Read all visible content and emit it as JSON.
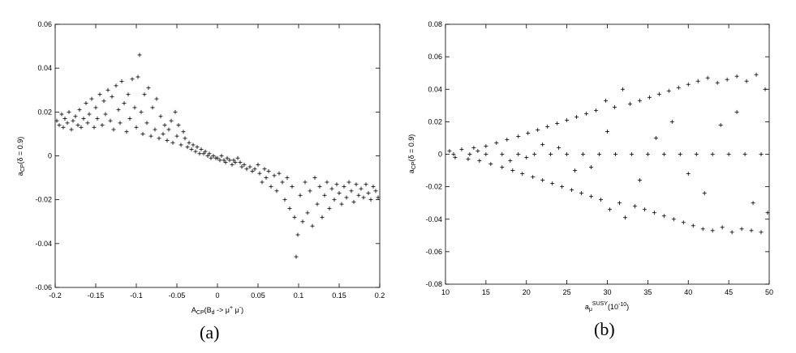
{
  "chart_data": [
    {
      "type": "scatter",
      "panel_label": "(a)",
      "xlabel": {
        "base": "A",
        "sub1": "CP",
        "mid": "(B",
        "sub2": "d",
        "arrow": " -> μ",
        "sup1": "+",
        "mid2": " μ",
        "sup2": "-",
        "end": ")"
      },
      "ylabel": {
        "base": "a",
        "sub": "CP",
        "rest": "(δ = 0.9)"
      },
      "xlim": [
        -0.2,
        0.2
      ],
      "ylim": [
        -0.06,
        0.06
      ],
      "xticks": [
        "-0.2",
        "-0.15",
        "-0.1",
        "-0.05",
        "0",
        "0.05",
        "0.1",
        "0.15",
        "0.2"
      ],
      "yticks": [
        "-0.06",
        "-0.04",
        "-0.02",
        "0",
        "0.02",
        "0.04",
        "0.06"
      ],
      "grid": false,
      "marker": "+",
      "points": [
        [
          -0.198,
          0.016
        ],
        [
          -0.195,
          0.014
        ],
        [
          -0.192,
          0.019
        ],
        [
          -0.19,
          0.013
        ],
        [
          -0.188,
          0.017
        ],
        [
          -0.185,
          0.015
        ],
        [
          -0.183,
          0.02
        ],
        [
          -0.18,
          0.012
        ],
        [
          -0.178,
          0.016
        ],
        [
          -0.175,
          0.018
        ],
        [
          -0.172,
          0.014
        ],
        [
          -0.17,
          0.021
        ],
        [
          -0.168,
          0.013
        ],
        [
          -0.165,
          0.017
        ],
        [
          -0.162,
          0.024
        ],
        [
          -0.16,
          0.015
        ],
        [
          -0.158,
          0.019
        ],
        [
          -0.155,
          0.026
        ],
        [
          -0.152,
          0.013
        ],
        [
          -0.15,
          0.022
        ],
        [
          -0.148,
          0.017
        ],
        [
          -0.145,
          0.028
        ],
        [
          -0.142,
          0.014
        ],
        [
          -0.14,
          0.025
        ],
        [
          -0.138,
          0.019
        ],
        [
          -0.135,
          0.03
        ],
        [
          -0.132,
          0.016
        ],
        [
          -0.13,
          0.027
        ],
        [
          -0.128,
          0.012
        ],
        [
          -0.125,
          0.032
        ],
        [
          -0.122,
          0.021
        ],
        [
          -0.12,
          0.015
        ],
        [
          -0.118,
          0.034
        ],
        [
          -0.115,
          0.024
        ],
        [
          -0.112,
          0.011
        ],
        [
          -0.11,
          0.028
        ],
        [
          -0.108,
          0.017
        ],
        [
          -0.105,
          0.035
        ],
        [
          -0.102,
          0.022
        ],
        [
          -0.1,
          0.013
        ],
        [
          -0.098,
          0.036
        ],
        [
          -0.096,
          0.046
        ],
        [
          -0.094,
          0.02
        ],
        [
          -0.092,
          0.01
        ],
        [
          -0.09,
          0.028
        ],
        [
          -0.087,
          0.015
        ],
        [
          -0.085,
          0.031
        ],
        [
          -0.082,
          0.009
        ],
        [
          -0.08,
          0.022
        ],
        [
          -0.077,
          0.012
        ],
        [
          -0.075,
          0.026
        ],
        [
          -0.072,
          0.008
        ],
        [
          -0.07,
          0.018
        ],
        [
          -0.067,
          0.01
        ],
        [
          -0.065,
          0.014
        ],
        [
          -0.062,
          0.007
        ],
        [
          -0.06,
          0.012
        ],
        [
          -0.057,
          0.016
        ],
        [
          -0.055,
          0.006
        ],
        [
          -0.052,
          0.02
        ],
        [
          -0.05,
          0.009
        ],
        [
          -0.048,
          0.014
        ],
        [
          -0.045,
          0.005
        ],
        [
          -0.042,
          0.011
        ],
        [
          -0.04,
          0.008
        ],
        [
          -0.037,
          0.004
        ],
        [
          -0.035,
          0.006
        ],
        [
          -0.032,
          0.003
        ],
        [
          -0.03,
          0.005
        ],
        [
          -0.027,
          0.002
        ],
        [
          -0.025,
          0.004
        ],
        [
          -0.022,
          0.001
        ],
        [
          -0.02,
          0.003
        ],
        [
          -0.017,
          0.001
        ],
        [
          -0.015,
          0.002
        ],
        [
          -0.012,
          0.0
        ],
        [
          -0.01,
          0.001
        ],
        [
          -0.008,
          -0.001
        ],
        [
          -0.005,
          0.0
        ],
        [
          -0.002,
          -0.001
        ],
        [
          0.0,
          -0.001
        ],
        [
          0.003,
          -0.002
        ],
        [
          0.005,
          0.0
        ],
        [
          0.008,
          -0.002
        ],
        [
          0.01,
          -0.003
        ],
        [
          0.012,
          -0.001
        ],
        [
          0.015,
          -0.002
        ],
        [
          0.018,
          -0.004
        ],
        [
          0.02,
          -0.002
        ],
        [
          0.022,
          -0.003
        ],
        [
          0.025,
          -0.001
        ],
        [
          0.028,
          -0.003
        ],
        [
          0.03,
          -0.005
        ],
        [
          0.033,
          -0.004
        ],
        [
          0.036,
          -0.006
        ],
        [
          0.04,
          -0.005
        ],
        [
          0.043,
          -0.007
        ],
        [
          0.046,
          -0.006
        ],
        [
          0.05,
          -0.004
        ],
        [
          0.052,
          -0.008
        ],
        [
          0.055,
          -0.012
        ],
        [
          0.058,
          -0.006
        ],
        [
          0.06,
          -0.01
        ],
        [
          0.063,
          -0.007
        ],
        [
          0.066,
          -0.014
        ],
        [
          0.07,
          -0.009
        ],
        [
          0.073,
          -0.016
        ],
        [
          0.076,
          -0.008
        ],
        [
          0.08,
          -0.012
        ],
        [
          0.083,
          -0.02
        ],
        [
          0.086,
          -0.01
        ],
        [
          0.089,
          -0.024
        ],
        [
          0.092,
          -0.014
        ],
        [
          0.095,
          -0.028
        ],
        [
          0.097,
          -0.046
        ],
        [
          0.099,
          -0.036
        ],
        [
          0.102,
          -0.018
        ],
        [
          0.105,
          -0.03
        ],
        [
          0.108,
          -0.012
        ],
        [
          0.111,
          -0.026
        ],
        [
          0.114,
          -0.016
        ],
        [
          0.117,
          -0.032
        ],
        [
          0.12,
          -0.01
        ],
        [
          0.123,
          -0.022
        ],
        [
          0.126,
          -0.014
        ],
        [
          0.129,
          -0.028
        ],
        [
          0.132,
          -0.018
        ],
        [
          0.135,
          -0.012
        ],
        [
          0.138,
          -0.024
        ],
        [
          0.141,
          -0.015
        ],
        [
          0.144,
          -0.02
        ],
        [
          0.147,
          -0.013
        ],
        [
          0.15,
          -0.017
        ],
        [
          0.153,
          -0.022
        ],
        [
          0.156,
          -0.014
        ],
        [
          0.159,
          -0.019
        ],
        [
          0.162,
          -0.012
        ],
        [
          0.165,
          -0.016
        ],
        [
          0.168,
          -0.021
        ],
        [
          0.171,
          -0.013
        ],
        [
          0.174,
          -0.018
        ],
        [
          0.177,
          -0.015
        ],
        [
          0.18,
          -0.019
        ],
        [
          0.183,
          -0.013
        ],
        [
          0.186,
          -0.017
        ],
        [
          0.189,
          -0.02
        ],
        [
          0.192,
          -0.014
        ],
        [
          0.195,
          -0.016
        ],
        [
          0.198,
          -0.019
        ]
      ]
    },
    {
      "type": "scatter",
      "panel_label": "(b)",
      "xlabel": {
        "base": "a",
        "sub": "μ",
        "sup": "SUSY",
        "rest": "(10",
        "exp": "-10",
        "end": ")"
      },
      "ylabel": {
        "base": "a",
        "sub": "CP",
        "rest": "(δ = 0.9)"
      },
      "xlim": [
        10,
        50
      ],
      "ylim": [
        -0.08,
        0.08
      ],
      "xticks": [
        "10",
        "15",
        "20",
        "25",
        "30",
        "35",
        "40",
        "45",
        "50"
      ],
      "yticks": [
        "-0.08",
        "-0.06",
        "-0.04",
        "-0.02",
        "0",
        "0.02",
        "0.04",
        "0.06",
        "0.08"
      ],
      "grid": false,
      "marker": "+",
      "points": [
        [
          10.5,
          0.002
        ],
        [
          11.2,
          -0.002
        ],
        [
          12.0,
          0.003
        ],
        [
          12.8,
          -0.003
        ],
        [
          13.5,
          0.004
        ],
        [
          14.2,
          -0.004
        ],
        [
          15.0,
          0.005
        ],
        [
          15.6,
          -0.006
        ],
        [
          16.3,
          0.007
        ],
        [
          17.0,
          -0.008
        ],
        [
          17.6,
          0.009
        ],
        [
          18.3,
          -0.01
        ],
        [
          19.0,
          0.011
        ],
        [
          19.5,
          -0.012
        ],
        [
          20.2,
          0.013
        ],
        [
          20.8,
          -0.014
        ],
        [
          21.4,
          0.015
        ],
        [
          22.0,
          -0.016
        ],
        [
          22.6,
          0.017
        ],
        [
          23.2,
          -0.018
        ],
        [
          23.8,
          0.019
        ],
        [
          24.4,
          -0.02
        ],
        [
          25.0,
          0.021
        ],
        [
          25.6,
          -0.022
        ],
        [
          26.2,
          0.023
        ],
        [
          26.8,
          -0.024
        ],
        [
          27.4,
          0.025
        ],
        [
          28.0,
          -0.026
        ],
        [
          28.6,
          0.027
        ],
        [
          29.2,
          -0.028
        ],
        [
          29.8,
          0.033
        ],
        [
          30.3,
          -0.034
        ],
        [
          30.9,
          0.029
        ],
        [
          31.5,
          -0.03
        ],
        [
          31.9,
          0.04
        ],
        [
          32.2,
          -0.039
        ],
        [
          32.8,
          0.031
        ],
        [
          33.4,
          -0.032
        ],
        [
          34.0,
          0.033
        ],
        [
          34.6,
          -0.034
        ],
        [
          35.2,
          0.035
        ],
        [
          35.8,
          -0.036
        ],
        [
          36.4,
          0.037
        ],
        [
          37.0,
          -0.038
        ],
        [
          37.6,
          0.039
        ],
        [
          38.2,
          -0.04
        ],
        [
          38.8,
          0.041
        ],
        [
          39.4,
          -0.042
        ],
        [
          40.0,
          0.043
        ],
        [
          40.6,
          -0.044
        ],
        [
          41.2,
          0.045
        ],
        [
          41.8,
          -0.046
        ],
        [
          42.4,
          0.047
        ],
        [
          43.0,
          -0.047
        ],
        [
          43.6,
          0.044
        ],
        [
          44.2,
          -0.045
        ],
        [
          44.8,
          0.046
        ],
        [
          45.4,
          -0.048
        ],
        [
          46.0,
          0.048
        ],
        [
          46.6,
          -0.046
        ],
        [
          47.2,
          0.045
        ],
        [
          47.8,
          -0.047
        ],
        [
          48.4,
          0.049
        ],
        [
          49.0,
          -0.048
        ],
        [
          49.5,
          0.04
        ],
        [
          49.8,
          -0.036
        ],
        [
          11.0,
          0.0
        ],
        [
          13.0,
          0.0
        ],
        [
          15.0,
          0.0
        ],
        [
          17.0,
          0.0
        ],
        [
          19.0,
          0.0
        ],
        [
          21.0,
          0.0
        ],
        [
          23.0,
          0.0
        ],
        [
          25.0,
          0.0
        ],
        [
          27.0,
          0.0
        ],
        [
          29.0,
          0.0
        ],
        [
          31.0,
          0.0
        ],
        [
          33.0,
          0.0
        ],
        [
          35.0,
          0.0
        ],
        [
          37.0,
          0.0
        ],
        [
          39.0,
          0.0
        ],
        [
          41.0,
          0.0
        ],
        [
          43.0,
          0.0
        ],
        [
          45.0,
          0.0
        ],
        [
          47.0,
          0.0
        ],
        [
          49.0,
          0.0
        ],
        [
          14.0,
          0.002
        ],
        [
          18.0,
          -0.004
        ],
        [
          22.0,
          0.006
        ],
        [
          26.0,
          -0.01
        ],
        [
          30.0,
          0.014
        ],
        [
          34.0,
          -0.016
        ],
        [
          38.0,
          0.02
        ],
        [
          42.0,
          -0.024
        ],
        [
          46.0,
          0.026
        ],
        [
          48.0,
          -0.03
        ],
        [
          36.0,
          0.01
        ],
        [
          40.0,
          -0.012
        ],
        [
          44.0,
          0.018
        ],
        [
          28.0,
          -0.008
        ],
        [
          24.0,
          0.004
        ],
        [
          20.0,
          -0.002
        ]
      ]
    }
  ]
}
